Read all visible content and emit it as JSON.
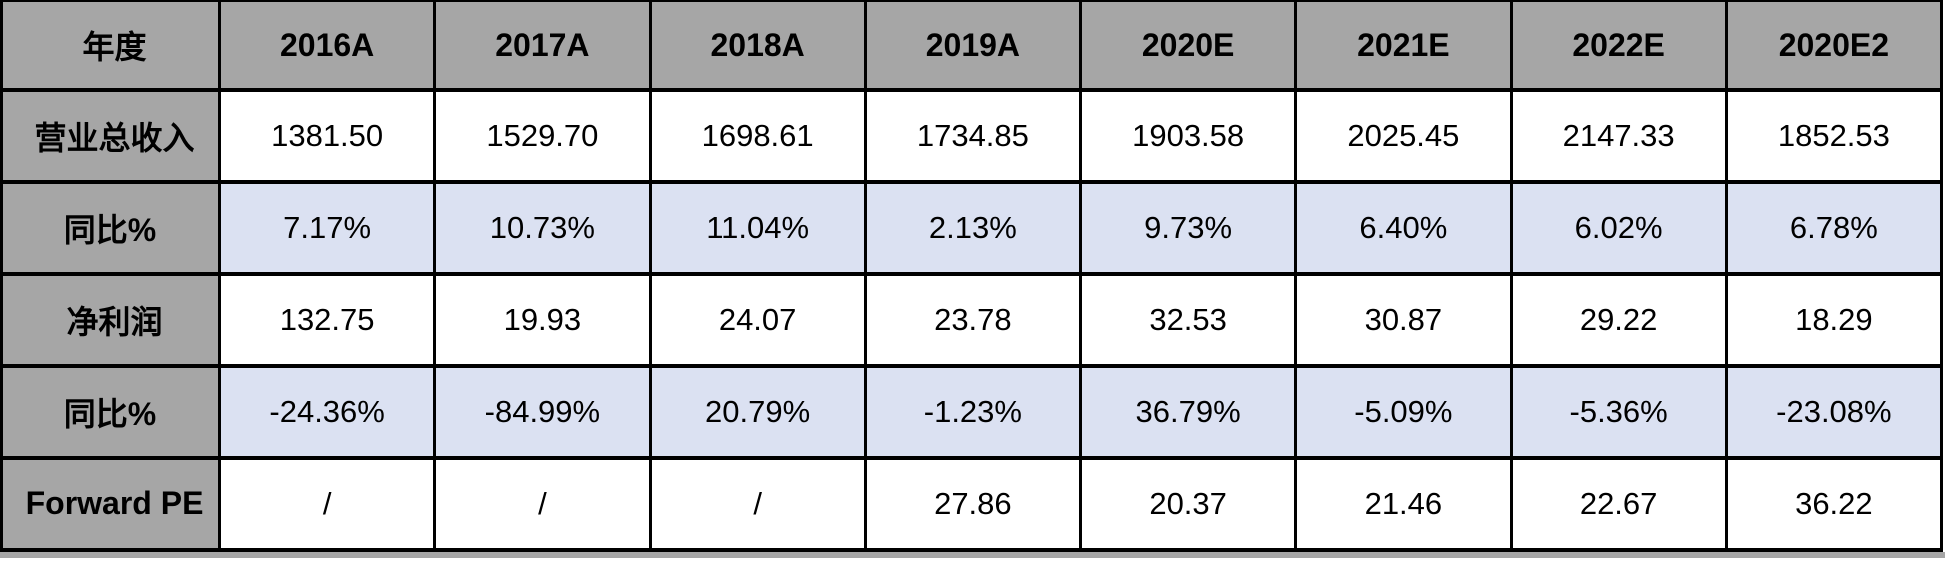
{
  "colors": {
    "header_bg": "#a6a6a6",
    "label_bg": "#a6a6a6",
    "highlight_bg": "#dbe1f2",
    "cell_bg": "#ffffff",
    "border": "#000000",
    "text": "#000000"
  },
  "chart_data": {
    "type": "table",
    "corner_label": "年度",
    "columns": [
      "2016A",
      "2017A",
      "2018A",
      "2019A",
      "2020E",
      "2021E",
      "2022E",
      "2020E2"
    ],
    "rows": [
      {
        "label": "营业总收入",
        "label_align": "left",
        "highlight": false,
        "values": [
          "1381.50",
          "1529.70",
          "1698.61",
          "1734.85",
          "1903.58",
          "2025.45",
          "2147.33",
          "1852.53"
        ]
      },
      {
        "label": "同比%",
        "label_align": "center",
        "highlight": true,
        "values": [
          "7.17%",
          "10.73%",
          "11.04%",
          "2.13%",
          "9.73%",
          "6.40%",
          "6.02%",
          "6.78%"
        ]
      },
      {
        "label": "净利润",
        "label_align": "left",
        "highlight": false,
        "values": [
          "132.75",
          "19.93",
          "24.07",
          "23.78",
          "32.53",
          "30.87",
          "29.22",
          "18.29"
        ]
      },
      {
        "label": "同比%",
        "label_align": "center",
        "highlight": true,
        "values": [
          "-24.36%",
          "-84.99%",
          "20.79%",
          "-1.23%",
          "36.79%",
          "-5.09%",
          "-5.36%",
          "-23.08%"
        ]
      },
      {
        "label": "Forward PE",
        "label_align": "left",
        "highlight": false,
        "values": [
          "/",
          "/",
          "/",
          "27.86",
          "20.37",
          "21.46",
          "22.67",
          "36.22"
        ]
      }
    ]
  }
}
